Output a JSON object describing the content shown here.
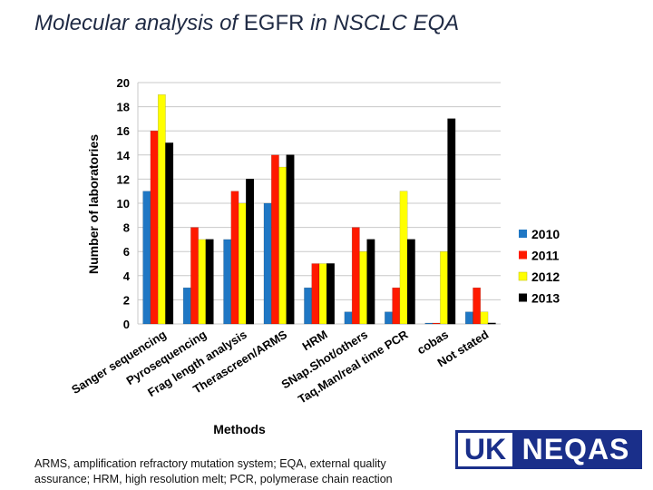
{
  "slide": {
    "title_part1": "Molecular analysis of",
    "title_part2": "EGFR",
    "title_part3": "in NSCLC EQA",
    "footnote": "ARMS, amplification refractory mutation system; EQA, external quality assurance; HRM, high resolution melt; PCR, polymerase chain reaction",
    "logo_left": "UK",
    "logo_right": "NEQAS"
  },
  "chart_data": {
    "type": "bar",
    "title": "",
    "xlabel": "Methods",
    "ylabel": "Number of laboratories",
    "ylim": [
      0,
      20
    ],
    "yticks": [
      0,
      2,
      4,
      6,
      8,
      10,
      12,
      14,
      16,
      18,
      20
    ],
    "grid": true,
    "legend_position": "right",
    "categories": [
      "Sanger sequencing",
      "Pyrosequencing",
      "Frag length analysis",
      "Therascreen/ARMS",
      "HRM",
      "SNap.Shot/others",
      "Taq.Man/real time PCR",
      "cobas",
      "Not stated"
    ],
    "series": [
      {
        "name": "2010",
        "color": "#1f77c4",
        "values": [
          11,
          3,
          7,
          10,
          3,
          1,
          1,
          0,
          1
        ]
      },
      {
        "name": "2011",
        "color": "#ff1a00",
        "values": [
          16,
          8,
          11,
          14,
          5,
          8,
          3,
          0,
          3
        ]
      },
      {
        "name": "2012",
        "color": "#ffff00",
        "values": [
          19,
          7,
          10,
          13,
          5,
          6,
          11,
          6,
          1
        ]
      },
      {
        "name": "2013",
        "color": "#000000",
        "values": [
          15,
          7,
          12,
          14,
          5,
          7,
          7,
          17,
          0
        ]
      }
    ]
  }
}
